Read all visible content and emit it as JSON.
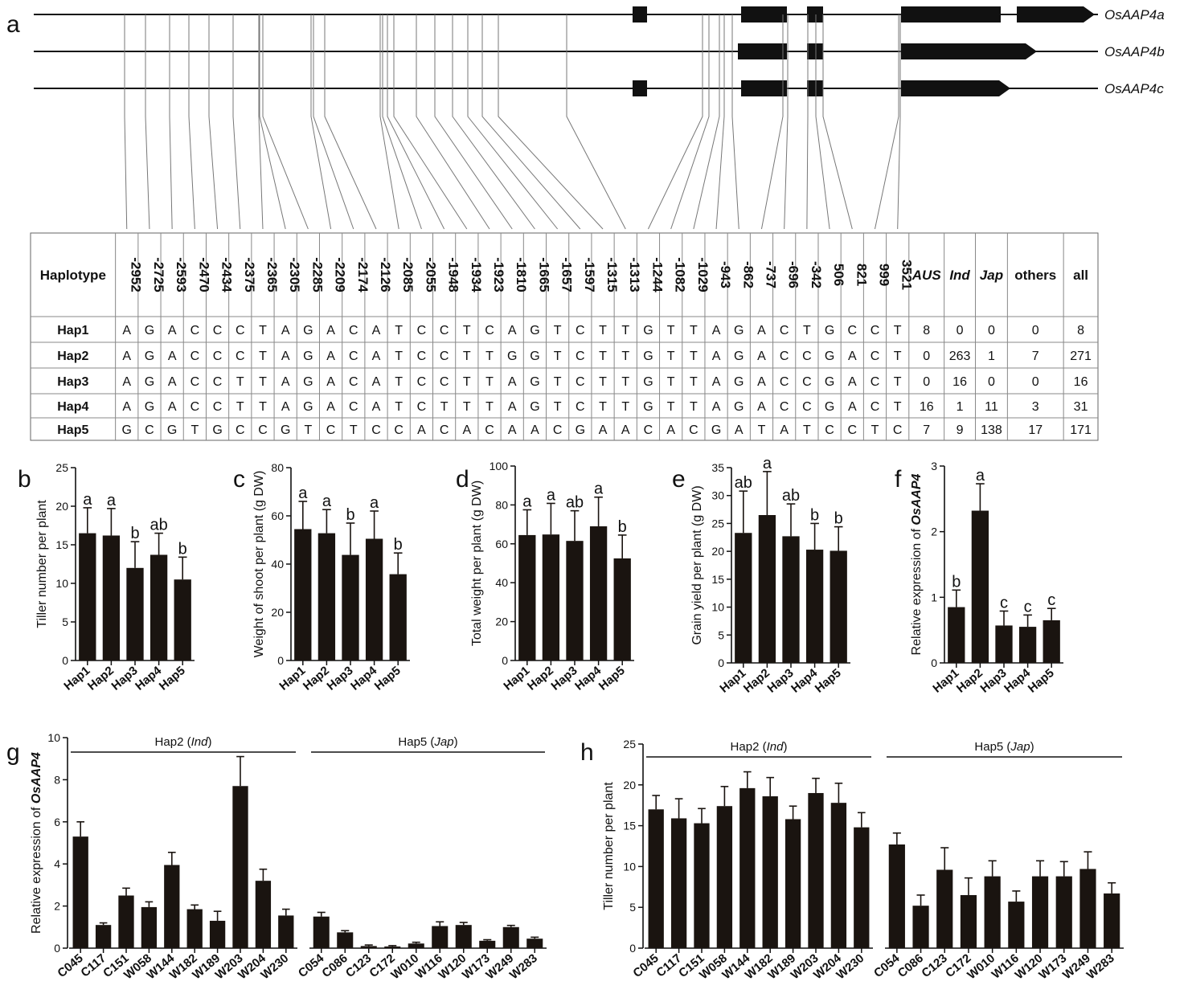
{
  "panel_a": {
    "letter": "a",
    "genes": [
      "OsAAP4a",
      "OsAAP4b",
      "OsAAP4c"
    ],
    "table": {
      "header_first": "Haplotype",
      "positions": [
        "-2952",
        "-2725",
        "-2593",
        "-2470",
        "-2434",
        "-2375",
        "-2365",
        "-2305",
        "-2285",
        "-2209",
        "-2174",
        "-2126",
        "-2085",
        "-2055",
        "-1948",
        "-1934",
        "-1923",
        "-1810",
        "-1665",
        "-1657",
        "-1597",
        "-1315",
        "-1313",
        "-1244",
        "-1082",
        "-1029",
        "-943",
        "-862",
        "-737",
        "-696",
        "-342",
        "506",
        "821",
        "999",
        "3521"
      ],
      "group_cols": [
        "AUS",
        "Ind",
        "Jap",
        "others",
        "all"
      ],
      "rows": [
        {
          "hap": "Hap1",
          "alleles": [
            "A",
            "G",
            "A",
            "C",
            "C",
            "C",
            "T",
            "A",
            "G",
            "A",
            "C",
            "A",
            "T",
            "C",
            "C",
            "T",
            "C",
            "A",
            "G",
            "T",
            "C",
            "T",
            "T",
            "G",
            "T",
            "T",
            "A",
            "G",
            "A",
            "C",
            "T",
            "G",
            "C",
            "C",
            "T"
          ],
          "counts": [
            "8",
            "0",
            "0",
            "0",
            "8"
          ]
        },
        {
          "hap": "Hap2",
          "alleles": [
            "A",
            "G",
            "A",
            "C",
            "C",
            "C",
            "T",
            "A",
            "G",
            "A",
            "C",
            "A",
            "T",
            "C",
            "C",
            "T",
            "T",
            "G",
            "G",
            "T",
            "C",
            "T",
            "T",
            "G",
            "T",
            "T",
            "A",
            "G",
            "A",
            "C",
            "C",
            "G",
            "A",
            "C",
            "T"
          ],
          "counts": [
            "0",
            "263",
            "1",
            "7",
            "271"
          ]
        },
        {
          "hap": "Hap3",
          "alleles": [
            "A",
            "G",
            "A",
            "C",
            "C",
            "T",
            "T",
            "A",
            "G",
            "A",
            "C",
            "A",
            "T",
            "C",
            "C",
            "T",
            "T",
            "A",
            "G",
            "T",
            "C",
            "T",
            "T",
            "G",
            "T",
            "T",
            "A",
            "G",
            "A",
            "C",
            "C",
            "G",
            "A",
            "C",
            "T"
          ],
          "counts": [
            "0",
            "16",
            "0",
            "0",
            "16"
          ]
        },
        {
          "hap": "Hap4",
          "alleles": [
            "A",
            "G",
            "A",
            "C",
            "C",
            "T",
            "T",
            "A",
            "G",
            "A",
            "C",
            "A",
            "T",
            "C",
            "T",
            "T",
            "T",
            "A",
            "G",
            "T",
            "C",
            "T",
            "T",
            "G",
            "T",
            "T",
            "A",
            "G",
            "A",
            "C",
            "C",
            "G",
            "A",
            "C",
            "T"
          ],
          "counts": [
            "16",
            "1",
            "11",
            "3",
            "31"
          ]
        },
        {
          "hap": "Hap5",
          "alleles": [
            "G",
            "C",
            "G",
            "T",
            "G",
            "C",
            "C",
            "G",
            "T",
            "C",
            "T",
            "C",
            "C",
            "A",
            "C",
            "A",
            "C",
            "A",
            "A",
            "C",
            "G",
            "A",
            "A",
            "C",
            "A",
            "C",
            "G",
            "A",
            "T",
            "A",
            "T",
            "C",
            "C",
            "T",
            "C"
          ],
          "counts": [
            "7",
            "9",
            "138",
            "17",
            "171"
          ]
        }
      ]
    }
  },
  "chart_data": [
    {
      "id": "b",
      "type": "bar",
      "letter": "b",
      "ylabel": "Tiller number per plant",
      "categories": [
        "Hap1",
        "Hap2",
        "Hap3",
        "Hap4",
        "Hap5"
      ],
      "values": [
        16.5,
        16.2,
        12.0,
        13.7,
        10.5
      ],
      "errors": [
        3.3,
        3.5,
        3.4,
        2.8,
        2.9
      ],
      "letters": [
        "a",
        "a",
        "b",
        "ab",
        "b"
      ],
      "ylim": [
        0,
        25
      ],
      "ticks": [
        0,
        5,
        10,
        15,
        20,
        25
      ]
    },
    {
      "id": "c",
      "type": "bar",
      "letter": "c",
      "ylabel": "Weight of shoot per plant (g DW)",
      "categories": [
        "Hap1",
        "Hap2",
        "Hap3",
        "Hap4",
        "Hap5"
      ],
      "values": [
        54.5,
        52.8,
        43.8,
        50.5,
        35.8
      ],
      "errors": [
        11.5,
        9.8,
        13.2,
        11.5,
        8.8
      ],
      "letters": [
        "a",
        "a",
        "b",
        "a",
        "b"
      ],
      "ylim": [
        0,
        80
      ],
      "ticks": [
        0,
        20,
        40,
        60,
        80
      ]
    },
    {
      "id": "d",
      "type": "bar",
      "letter": "d",
      "ylabel": "Total weight per plant (g DW)",
      "categories": [
        "Hap1",
        "Hap2",
        "Hap3",
        "Hap4",
        "Hap5"
      ],
      "values": [
        64.5,
        64.8,
        61.5,
        69.0,
        52.5
      ],
      "errors": [
        13.0,
        16.0,
        15.5,
        15.0,
        12.0
      ],
      "letters": [
        "a",
        "a",
        "ab",
        "a",
        "b"
      ],
      "ylim": [
        0,
        100
      ],
      "ticks": [
        0,
        20,
        40,
        60,
        80,
        100
      ]
    },
    {
      "id": "e",
      "type": "bar",
      "letter": "e",
      "ylabel": "Grain yield per plant (g DW)",
      "categories": [
        "Hap1",
        "Hap2",
        "Hap3",
        "Hap4",
        "Hap5"
      ],
      "values": [
        23.3,
        26.5,
        22.7,
        20.3,
        20.1
      ],
      "errors": [
        7.5,
        7.8,
        5.8,
        4.7,
        4.3
      ],
      "letters": [
        "ab",
        "a",
        "ab",
        "b",
        "b"
      ],
      "ylim": [
        0,
        35
      ],
      "ticks": [
        0,
        5,
        10,
        15,
        20,
        25,
        30,
        35
      ]
    },
    {
      "id": "f",
      "type": "bar",
      "letter": "f",
      "ylabel_prefix": "Relative expression of ",
      "ylabel_gene": "OsAAP4",
      "categories": [
        "Hap1",
        "Hap2",
        "Hap3",
        "Hap4",
        "Hap5"
      ],
      "values": [
        0.85,
        2.32,
        0.57,
        0.55,
        0.65
      ],
      "errors": [
        0.26,
        0.41,
        0.22,
        0.18,
        0.18
      ],
      "letters": [
        "b",
        "a",
        "c",
        "c",
        "c"
      ],
      "ylim": [
        0,
        3
      ],
      "ticks": [
        0,
        1,
        2,
        3
      ]
    },
    {
      "id": "g",
      "type": "bar",
      "letter": "g",
      "ylabel_prefix": "Relative expression of ",
      "ylabel_gene": "OsAAP4",
      "groups": [
        {
          "label_prefix": "Hap2 (",
          "label_italic": "Ind",
          "label_suffix": ")",
          "categories": [
            "C045",
            "C117",
            "C151",
            "W058",
            "W144",
            "W182",
            "W189",
            "W203",
            "W204",
            "W230"
          ],
          "values": [
            5.3,
            1.1,
            2.5,
            1.95,
            3.95,
            1.85,
            1.3,
            7.7,
            3.2,
            1.55
          ],
          "errors": [
            0.7,
            0.1,
            0.35,
            0.25,
            0.6,
            0.2,
            0.45,
            1.4,
            0.55,
            0.3
          ]
        },
        {
          "label_prefix": "Hap5 (",
          "label_italic": "Jap",
          "label_suffix": ")",
          "categories": [
            "C054",
            "C086",
            "C123",
            "C172",
            "W010",
            "W116",
            "W120",
            "W173",
            "W249",
            "W283"
          ],
          "values": [
            1.5,
            0.75,
            0.1,
            0.08,
            0.22,
            1.05,
            1.1,
            0.35,
            1.0,
            0.45
          ],
          "errors": [
            0.2,
            0.08,
            0.05,
            0.04,
            0.06,
            0.2,
            0.12,
            0.05,
            0.08,
            0.07
          ]
        }
      ],
      "ylim": [
        0,
        10
      ],
      "ticks": [
        0,
        2,
        4,
        6,
        8,
        10
      ]
    },
    {
      "id": "h",
      "type": "bar",
      "letter": "h",
      "ylabel": "Tiller number per plant",
      "groups": [
        {
          "label_prefix": "Hap2 (",
          "label_italic": "Ind",
          "label_suffix": ")",
          "categories": [
            "C045",
            "C117",
            "C151",
            "W058",
            "W144",
            "W182",
            "W189",
            "W203",
            "W204",
            "W230"
          ],
          "values": [
            17.0,
            15.9,
            15.3,
            17.4,
            19.6,
            18.6,
            15.8,
            19.0,
            17.8,
            14.8
          ],
          "errors": [
            1.7,
            2.4,
            1.8,
            2.4,
            2.0,
            2.3,
            1.6,
            1.8,
            2.4,
            1.8
          ]
        },
        {
          "label_prefix": "Hap5 (",
          "label_italic": "Jap",
          "label_suffix": ")",
          "categories": [
            "C054",
            "C086",
            "C123",
            "C172",
            "W010",
            "W116",
            "W120",
            "W173",
            "W249",
            "W283"
          ],
          "values": [
            12.7,
            5.2,
            9.6,
            6.5,
            8.8,
            5.7,
            8.8,
            8.8,
            9.7,
            6.7
          ],
          "errors": [
            1.4,
            1.3,
            2.7,
            2.1,
            1.9,
            1.3,
            1.9,
            1.8,
            2.1,
            1.3
          ]
        }
      ],
      "ylim": [
        0,
        25
      ],
      "ticks": [
        0,
        5,
        10,
        15,
        20,
        25
      ]
    }
  ]
}
